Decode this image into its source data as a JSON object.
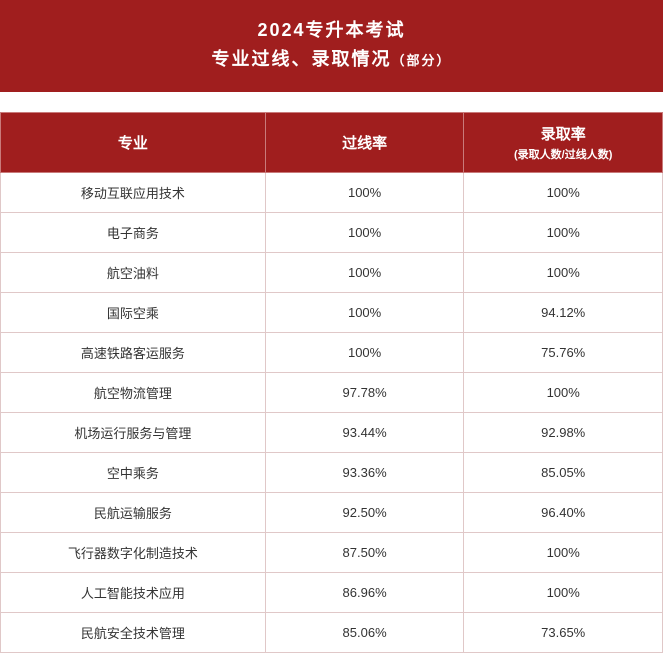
{
  "header": {
    "title": "2024专升本考试",
    "subtitle_main": "专业过线、录取情况",
    "subtitle_small": "（部分）"
  },
  "table": {
    "columns": [
      {
        "label": "专业",
        "sub": ""
      },
      {
        "label": "过线率",
        "sub": ""
      },
      {
        "label": "录取率",
        "sub": "(录取人数/过线人数)"
      }
    ],
    "rows": [
      {
        "major": "移动互联应用技术",
        "pass": "100%",
        "admit": "100%"
      },
      {
        "major": "电子商务",
        "pass": "100%",
        "admit": "100%"
      },
      {
        "major": "航空油料",
        "pass": "100%",
        "admit": "100%"
      },
      {
        "major": "国际空乘",
        "pass": "100%",
        "admit": "94.12%"
      },
      {
        "major": "高速铁路客运服务",
        "pass": "100%",
        "admit": "75.76%"
      },
      {
        "major": "航空物流管理",
        "pass": "97.78%",
        "admit": "100%"
      },
      {
        "major": "机场运行服务与管理",
        "pass": "93.44%",
        "admit": "92.98%"
      },
      {
        "major": "空中乘务",
        "pass": "93.36%",
        "admit": "85.05%"
      },
      {
        "major": "民航运输服务",
        "pass": "92.50%",
        "admit": "96.40%"
      },
      {
        "major": "飞行器数字化制造技术",
        "pass": "87.50%",
        "admit": "100%"
      },
      {
        "major": "人工智能技术应用",
        "pass": "86.96%",
        "admit": "100%"
      },
      {
        "major": "民航安全技术管理",
        "pass": "85.06%",
        "admit": "73.65%"
      }
    ]
  },
  "colors": {
    "header_bg": "#a01e1e",
    "header_text": "#ffffff",
    "cell_border": "#e0c8c8",
    "th_border": "#c97a7a",
    "body_text": "#333333",
    "background": "#ffffff"
  }
}
